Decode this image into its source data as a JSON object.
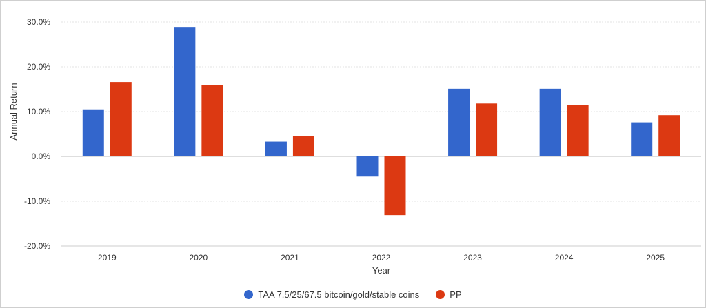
{
  "chart_data": {
    "type": "bar",
    "title": "",
    "xlabel": "Year",
    "ylabel": "Annual Return",
    "categories": [
      "2019",
      "2020",
      "2021",
      "2022",
      "2023",
      "2024",
      "2025"
    ],
    "series": [
      {
        "name": "TAA 7.5/25/67.5 bitcoin/gold/stable coins",
        "color": "#3366cc",
        "values": [
          10.5,
          28.9,
          3.3,
          -4.5,
          15.1,
          15.1,
          7.6
        ]
      },
      {
        "name": "PP",
        "color": "#dc3912",
        "values": [
          16.6,
          16.0,
          4.6,
          -13.1,
          11.8,
          11.5,
          9.2
        ]
      }
    ],
    "ylim": [
      -20,
      30
    ],
    "yticks": [
      30,
      20,
      10,
      0,
      -10,
      -20
    ],
    "ytick_labels": [
      "30.0%",
      "20.0%",
      "10.0%",
      "0.0%",
      "-10.0%",
      "-20.0%"
    ],
    "grid": true,
    "legend_position": "bottom"
  }
}
